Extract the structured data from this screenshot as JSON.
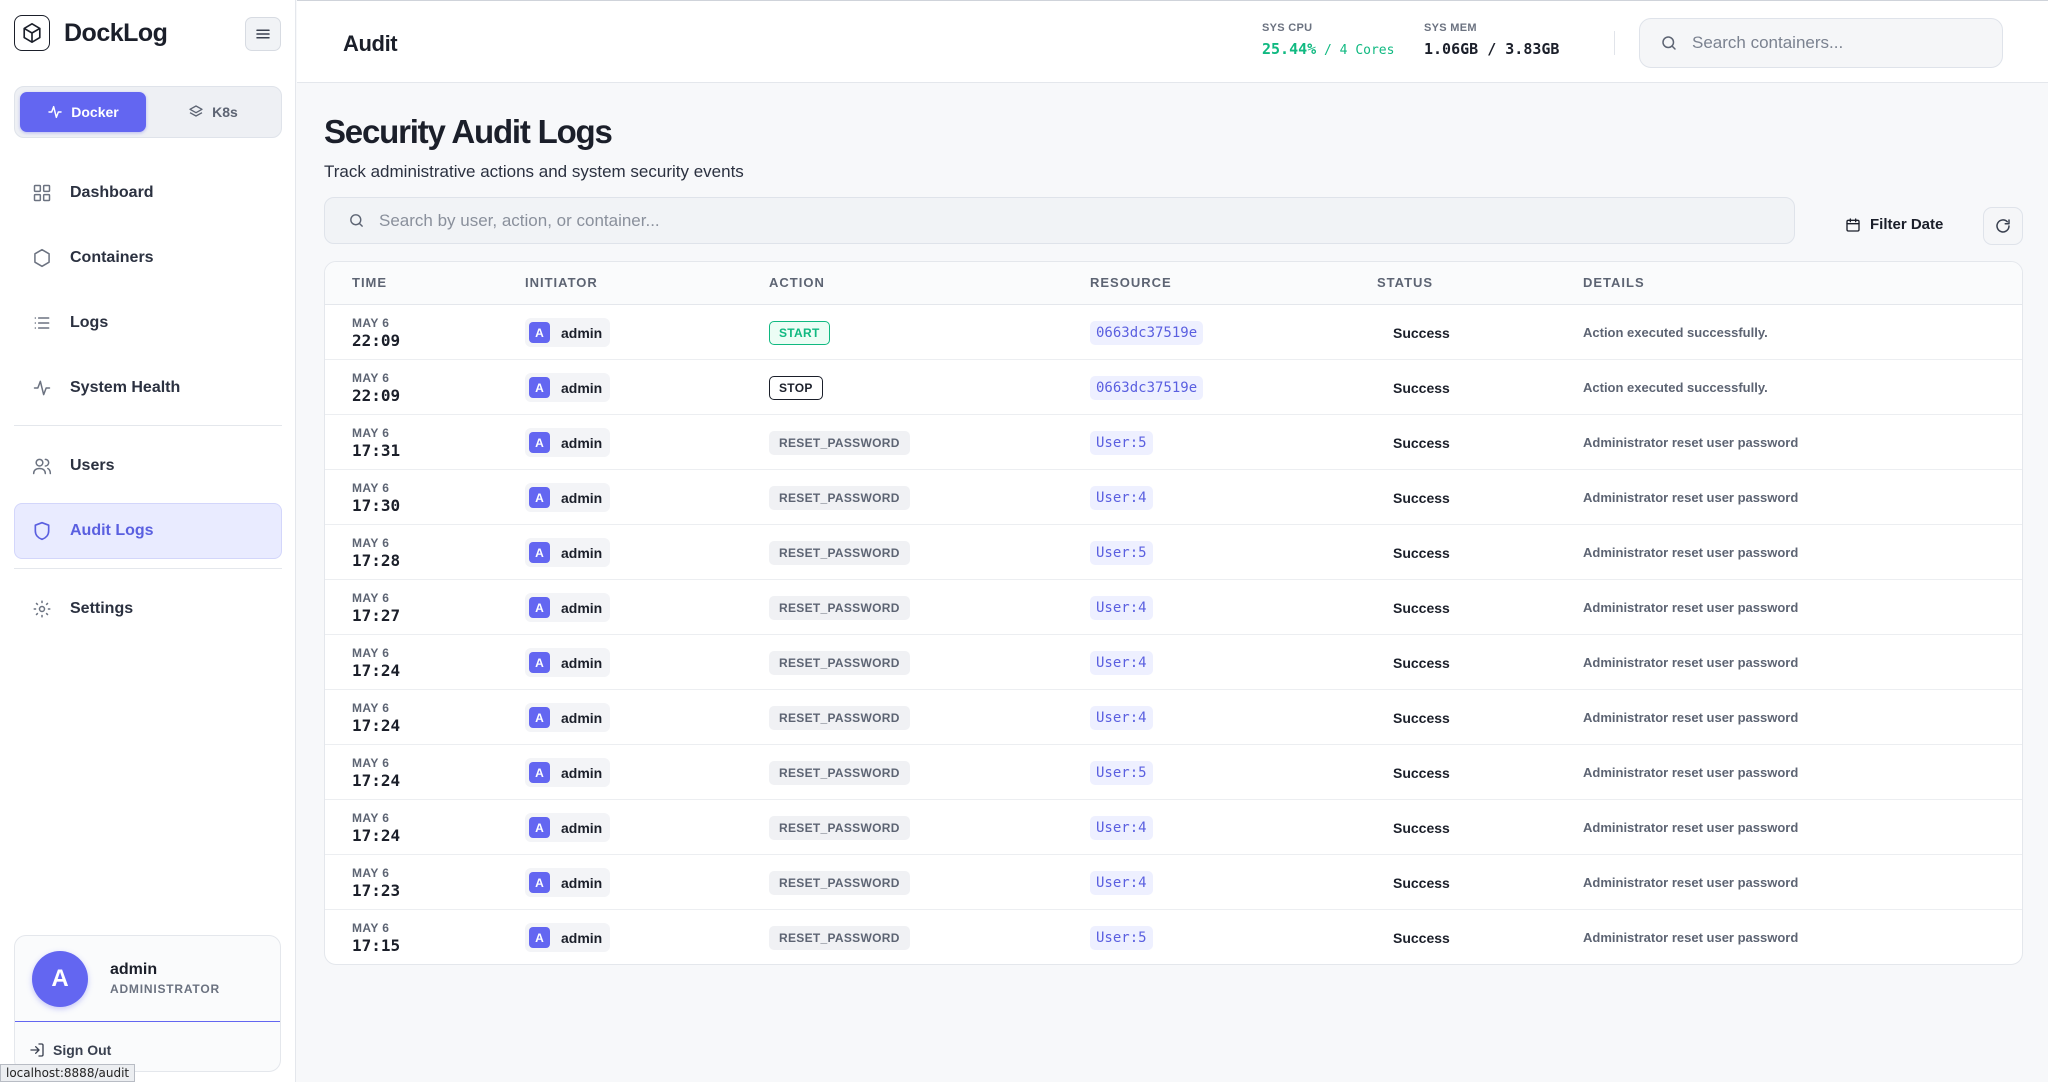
{
  "app": {
    "brand": "DockLog"
  },
  "platform": {
    "docker_label": "Docker",
    "k8s_label": "K8s"
  },
  "sidebar": {
    "items": [
      {
        "label": "Dashboard"
      },
      {
        "label": "Containers"
      },
      {
        "label": "Logs"
      },
      {
        "label": "System Health"
      },
      {
        "label": "Users"
      },
      {
        "label": "Audit Logs"
      },
      {
        "label": "Settings"
      }
    ]
  },
  "user": {
    "initial": "A",
    "name": "admin",
    "role": "ADMINISTRATOR",
    "signout_label": "Sign Out"
  },
  "status_url": "localhost:8888/audit",
  "header": {
    "title": "Audit",
    "cpu_label": "SYS CPU",
    "cpu_value": "25.44%",
    "cpu_detail": " / 4 Cores",
    "mem_label": "SYS MEM",
    "mem_value": "1.06GB / 3.83GB",
    "search_placeholder": "Search containers..."
  },
  "main": {
    "title": "Security Audit Logs",
    "subtitle": "Track administrative actions and system security events",
    "search_placeholder": "Search by user, action, or container...",
    "filter_label": "Filter Date"
  },
  "table": {
    "headers": [
      "TIME",
      "INITIATOR",
      "ACTION",
      "RESOURCE",
      "STATUS",
      "DETAILS"
    ],
    "rows": [
      {
        "month": "MAY 6",
        "time": "22:09",
        "initial": "A",
        "user": "admin",
        "action": "START",
        "resource": "0663dc37519e",
        "status": "Success",
        "details": "Action executed successfully."
      },
      {
        "month": "MAY 6",
        "time": "22:09",
        "initial": "A",
        "user": "admin",
        "action": "STOP",
        "resource": "0663dc37519e",
        "status": "Success",
        "details": "Action executed successfully."
      },
      {
        "month": "MAY 6",
        "time": "17:31",
        "initial": "A",
        "user": "admin",
        "action": "RESET_PASSWORD",
        "resource": "User:5",
        "status": "Success",
        "details": "Administrator reset user password"
      },
      {
        "month": "MAY 6",
        "time": "17:30",
        "initial": "A",
        "user": "admin",
        "action": "RESET_PASSWORD",
        "resource": "User:4",
        "status": "Success",
        "details": "Administrator reset user password"
      },
      {
        "month": "MAY 6",
        "time": "17:28",
        "initial": "A",
        "user": "admin",
        "action": "RESET_PASSWORD",
        "resource": "User:5",
        "status": "Success",
        "details": "Administrator reset user password"
      },
      {
        "month": "MAY 6",
        "time": "17:27",
        "initial": "A",
        "user": "admin",
        "action": "RESET_PASSWORD",
        "resource": "User:4",
        "status": "Success",
        "details": "Administrator reset user password"
      },
      {
        "month": "MAY 6",
        "time": "17:24",
        "initial": "A",
        "user": "admin",
        "action": "RESET_PASSWORD",
        "resource": "User:4",
        "status": "Success",
        "details": "Administrator reset user password"
      },
      {
        "month": "MAY 6",
        "time": "17:24",
        "initial": "A",
        "user": "admin",
        "action": "RESET_PASSWORD",
        "resource": "User:4",
        "status": "Success",
        "details": "Administrator reset user password"
      },
      {
        "month": "MAY 6",
        "time": "17:24",
        "initial": "A",
        "user": "admin",
        "action": "RESET_PASSWORD",
        "resource": "User:5",
        "status": "Success",
        "details": "Administrator reset user password"
      },
      {
        "month": "MAY 6",
        "time": "17:24",
        "initial": "A",
        "user": "admin",
        "action": "RESET_PASSWORD",
        "resource": "User:4",
        "status": "Success",
        "details": "Administrator reset user password"
      },
      {
        "month": "MAY 6",
        "time": "17:23",
        "initial": "A",
        "user": "admin",
        "action": "RESET_PASSWORD",
        "resource": "User:4",
        "status": "Success",
        "details": "Administrator reset user password"
      },
      {
        "month": "MAY 6",
        "time": "17:15",
        "initial": "A",
        "user": "admin",
        "action": "RESET_PASSWORD",
        "resource": "User:5",
        "status": "Success",
        "details": "Administrator reset user password"
      }
    ]
  },
  "colors": {
    "accent": "#6366f1",
    "success": "#10b981"
  }
}
